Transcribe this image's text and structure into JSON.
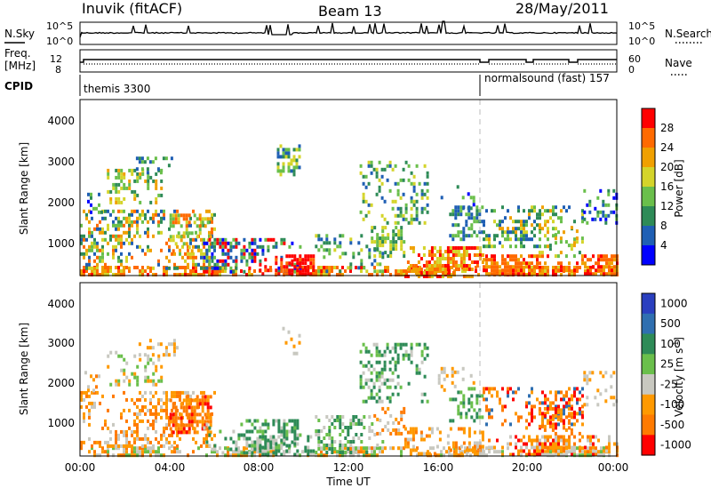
{
  "header": {
    "radar": "Inuvik (fitACF)",
    "beam": "Beam 13",
    "date": "28/May/2011"
  },
  "panels": {
    "nsky": {
      "label": "N.Sky",
      "ticks": [
        "10^5",
        "10^0"
      ]
    },
    "nsearch": {
      "label": "N.Search",
      "ticks": [
        "10^5",
        "10^0"
      ]
    },
    "freq": {
      "label_line1": "Freq.",
      "label_line2": "[MHz]",
      "ticks": [
        "12",
        "8"
      ]
    },
    "nave": {
      "label": "Nave",
      "ticks": [
        "60",
        "0"
      ]
    },
    "cpid": {
      "label": "CPID",
      "mode1": "themis 3300",
      "mode2": "normalsound (fast) 157"
    }
  },
  "colors": {
    "power": [
      "#0000ff",
      "#1f5fb4",
      "#2e8b57",
      "#6abf4b",
      "#d4d42a",
      "#f0a000",
      "#ff6a00",
      "#ff0000"
    ],
    "velocity": [
      "#2a3fbf",
      "#2f6fb0",
      "#2e8b57",
      "#6abf4b",
      "#c8c8c0",
      "#ff9900",
      "#ff7a00",
      "#ff0000"
    ]
  },
  "chart_data": [
    {
      "type": "heatmap",
      "ylabel": "Slant Range [km]",
      "xlabel": "",
      "ylim": [
        180,
        4500
      ],
      "yticks": [
        "4000",
        "3000",
        "2000",
        "1000"
      ],
      "xlim_hours": [
        0,
        24
      ],
      "xticks": [
        "00:00",
        "04:00",
        "08:00",
        "12:00",
        "16:00",
        "20:00",
        "00:00"
      ],
      "colorbar": {
        "label": "Power [dB]",
        "ticks": [
          "28",
          "24",
          "20",
          "16",
          "12",
          "8",
          "4"
        ]
      }
    },
    {
      "type": "heatmap",
      "ylabel": "Slant Range [km]",
      "xlabel": "Time UT",
      "ylim": [
        180,
        4500
      ],
      "yticks": [
        "4000",
        "3000",
        "2000",
        "1000"
      ],
      "xlim_hours": [
        0,
        24
      ],
      "xticks": [
        "00:00",
        "04:00",
        "08:00",
        "12:00",
        "16:00",
        "20:00",
        "00:00"
      ],
      "colorbar": {
        "label": "Velocity [m s",
        "label_sup": "-1",
        "label_end": "]",
        "ticks": [
          "1000",
          "500",
          "100",
          "25",
          "-25",
          "-100",
          "-500",
          "-1000"
        ]
      }
    }
  ]
}
